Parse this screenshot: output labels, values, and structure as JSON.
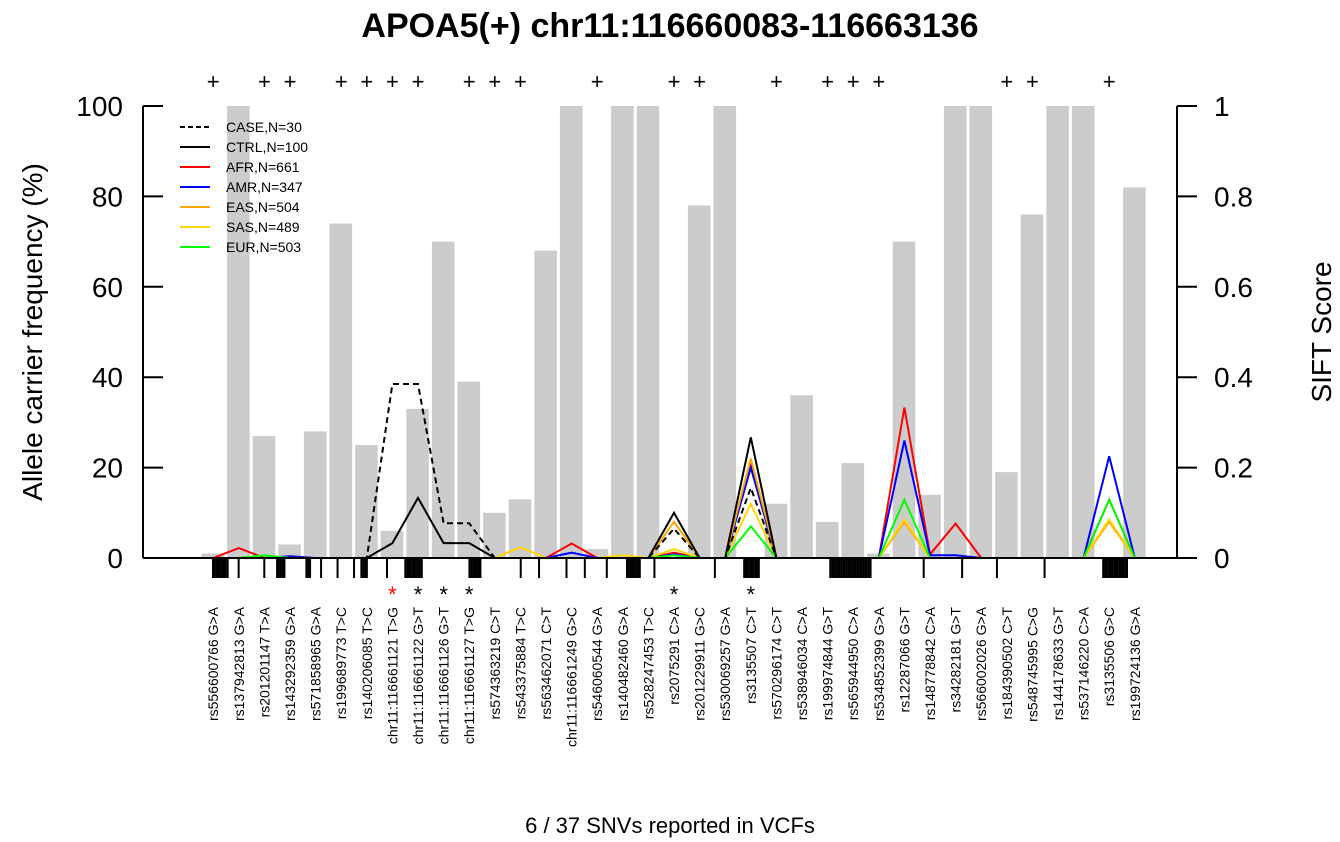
{
  "chart_data": {
    "type": "bar",
    "title": "APOA5(+) chr11:116660083-116663136",
    "xlabel": "6 / 37 SNVs reported in VCFs",
    "ylabel": "Allele carrier frequency (%)",
    "y2label": "SIFT Score",
    "ylim": [
      0,
      100
    ],
    "y2lim": [
      0,
      1
    ],
    "yticks": [
      "0",
      "20",
      "40",
      "60",
      "80",
      "100"
    ],
    "y2ticks": [
      "0",
      "0.2",
      "0.4",
      "0.6",
      "0.8",
      "1"
    ],
    "categories": [
      "rs556600766 G>A",
      "rs137942813 G>A",
      "rs201201147 T>A",
      "rs143292359 G>A",
      "rs571858965 G>A",
      "rs199689773 T>C",
      "rs140206085 T>C",
      "chr11:116661121 T>G",
      "chr11:116661122 G>T",
      "chr11:116661126 G>T",
      "chr11:116661127 T>G",
      "rs574363219 C>T",
      "rs543375884 T>C",
      "rs563462071 C>T",
      "chr11:116661249 G>C",
      "rs546060544 G>A",
      "rs140482460 G>A",
      "rs528247453 T>C",
      "rs2075291 C>A",
      "rs201229911 G>C",
      "rs530069257 G>A",
      "rs3135507 C>T",
      "rs570296174 C>T",
      "rs538946034 C>A",
      "rs199974844 G>T",
      "rs565944950 C>A",
      "rs534852399 G>A",
      "rs12287066 G>T",
      "rs148778842 C>A",
      "rs34282181 G>T",
      "rs566002026 G>A",
      "rs184390502 C>T",
      "rs548745995 C>G",
      "rs144178633 G>T",
      "rs537146220 C>A",
      "rs3135506 G>C",
      "rs199724136 G>A"
    ],
    "sift_scores": [
      0.01,
      1.0,
      0.27,
      0.03,
      0.28,
      0.74,
      0.25,
      0.06,
      0.33,
      0.7,
      0.39,
      0.1,
      0.13,
      0.68,
      1.0,
      0.02,
      1.0,
      1.0,
      0.0,
      0.78,
      1.0,
      0.0,
      0.12,
      0.36,
      0.08,
      0.21,
      0.01,
      0.7,
      0.14,
      1.0,
      1.0,
      0.19,
      0.76,
      1.0,
      1.0,
      0.0,
      0.82
    ],
    "series": [
      {
        "name": "CASE,N=30",
        "color": "#000000",
        "dash": true,
        "values": [
          0,
          0,
          0,
          0,
          0,
          0,
          0,
          38.5,
          38.5,
          7.7,
          7.7,
          0,
          0,
          0,
          0,
          0,
          0,
          0,
          6.5,
          0,
          0,
          15.5,
          0,
          0,
          0,
          0,
          0,
          0,
          0,
          0,
          0,
          0,
          0,
          0,
          0,
          0,
          0
        ]
      },
      {
        "name": "CTRL,N=100",
        "color": "#000000",
        "dash": false,
        "values": [
          0,
          0,
          0,
          0,
          0,
          0,
          0,
          3.3,
          13.3,
          3.3,
          3.3,
          0,
          0,
          0,
          0,
          0,
          0,
          0,
          10,
          0,
          0,
          26.7,
          0,
          0,
          0,
          0,
          0,
          0,
          0,
          0,
          0,
          0,
          0,
          0,
          0,
          0,
          0
        ]
      },
      {
        "name": "AFR,N=661",
        "color": "#ff0000",
        "dash": false,
        "values": [
          0,
          2.2,
          0,
          0,
          0,
          0,
          0,
          0,
          0,
          0,
          0,
          0,
          0,
          0,
          3.2,
          0,
          0,
          0,
          1.2,
          0,
          0,
          21,
          0,
          0,
          0,
          0,
          0,
          33.3,
          0.8,
          7.6,
          0,
          0,
          0,
          0,
          0,
          12.9,
          0
        ]
      },
      {
        "name": "AMR,N=347",
        "color": "#0000ff",
        "dash": false,
        "values": [
          0,
          0,
          0,
          0.4,
          0,
          0,
          0,
          0,
          0,
          0,
          0,
          0,
          0,
          0,
          1.2,
          0,
          0,
          0,
          0.8,
          0,
          0,
          20,
          0,
          0,
          0,
          0,
          0,
          26,
          0.6,
          0.6,
          0,
          0,
          0,
          0,
          0,
          22.5,
          0
        ]
      },
      {
        "name": "EAS,N=504",
        "color": "#ffa500",
        "dash": false,
        "values": [
          0,
          0,
          0,
          0,
          0,
          0,
          0,
          0,
          0,
          0,
          0,
          0,
          0,
          0,
          0,
          0,
          0,
          0,
          8,
          0,
          0,
          22,
          0,
          0,
          0,
          0,
          0,
          8,
          0,
          0,
          0,
          0,
          0,
          0,
          0,
          8,
          0
        ]
      },
      {
        "name": "SAS,N=489",
        "color": "#ffd700",
        "dash": false,
        "values": [
          0,
          0,
          0,
          0,
          0,
          0,
          0,
          0,
          0,
          0,
          0,
          0,
          2.4,
          0,
          0,
          0,
          0.6,
          0,
          2,
          0,
          0,
          12,
          0,
          0,
          0,
          0,
          0,
          8.5,
          0,
          0,
          0,
          0,
          0,
          0,
          0,
          8.5,
          0
        ]
      },
      {
        "name": "EUR,N=503",
        "color": "#00ff00",
        "dash": false,
        "values": [
          0,
          0,
          0.6,
          0,
          0,
          0,
          0,
          0,
          0,
          0,
          0,
          0,
          0,
          0,
          0,
          0,
          0,
          0,
          0.6,
          0,
          0,
          7,
          0,
          0,
          0,
          0,
          0,
          12.9,
          0,
          0,
          0,
          0,
          0,
          0,
          0,
          12.9,
          0
        ]
      }
    ],
    "plus_marked": [
      0,
      2,
      3,
      5,
      6,
      7,
      8,
      10,
      11,
      12,
      15,
      18,
      19,
      22,
      24,
      25,
      26,
      31,
      32,
      35
    ],
    "star_marked": [
      7,
      8,
      9,
      10,
      18,
      21
    ],
    "star_color_red": [
      7
    ],
    "position_ticks": [
      [
        0,
        1,
        2,
        3,
        4,
        5,
        6,
        7,
        8
      ],
      [
        14
      ],
      [
        28
      ],
      [
        35,
        36,
        37,
        38,
        39
      ],
      [
        51,
        52,
        53
      ],
      [
        59
      ],
      [
        68
      ],
      [
        77
      ],
      [
        81,
        82,
        83,
        84
      ],
      [
        95
      ],
      [
        105,
        106,
        107,
        108,
        109,
        110,
        111,
        112,
        113,
        114
      ],
      [
        140,
        141,
        142,
        143,
        144,
        145,
        146
      ],
      [
        168
      ],
      [
        178
      ],
      [
        193
      ],
      [
        203
      ],
      [
        215
      ],
      [
        226,
        227,
        228,
        229,
        230,
        231,
        232,
        233
      ],
      [
        241
      ],
      [
        274
      ],
      [
        290,
        291,
        292,
        293,
        294,
        295,
        296,
        297,
        298
      ],
      [
        337,
        338,
        339,
        340,
        341,
        342,
        343,
        344,
        345,
        346,
        347,
        348,
        349,
        350,
        351,
        352,
        353,
        354,
        355,
        356,
        357,
        358,
        359
      ],
      [
        388
      ],
      [
        409
      ],
      [
        428
      ],
      [
        454
      ],
      [
        486,
        487,
        488,
        489,
        490,
        491,
        492,
        493,
        494,
        495,
        496,
        497,
        498,
        499
      ]
    ],
    "colors": {
      "bar": "#cccccc",
      "star_red": "#ff0000"
    }
  }
}
